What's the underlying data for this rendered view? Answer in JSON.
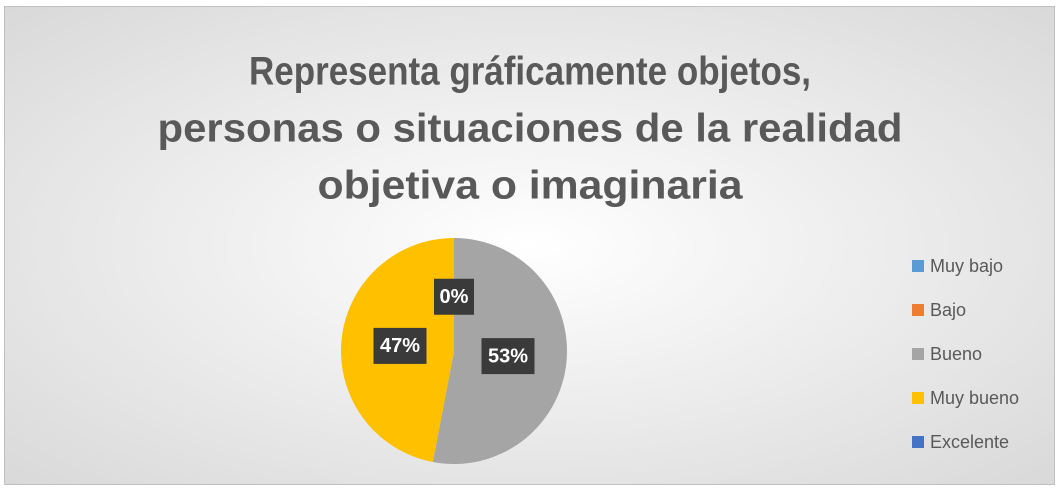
{
  "chart_data": {
    "type": "pie",
    "title": [
      "Representa gráficamente objetos,",
      "personas o situaciones de la realidad",
      "objetiva o imaginaria"
    ],
    "categories": [
      "Muy bajo",
      "Bajo",
      "Bueno",
      "Muy bueno",
      "Excelente"
    ],
    "values": [
      0,
      0,
      53,
      47,
      0
    ],
    "value_labels": [
      "0%",
      null,
      "53%",
      "47%",
      null
    ],
    "colors": [
      "#5b9bd5",
      "#ed7d31",
      "#a5a5a5",
      "#ffc000",
      "#4472c4"
    ],
    "legend": "right"
  }
}
